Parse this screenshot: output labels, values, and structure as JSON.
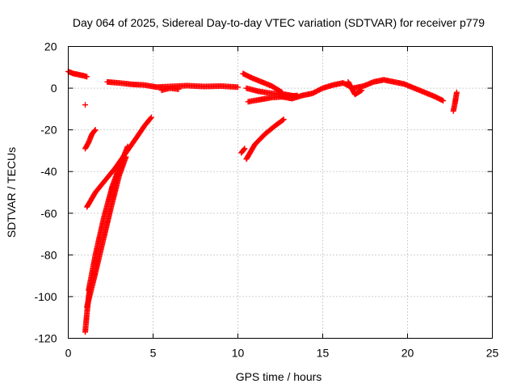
{
  "chart_data": {
    "type": "scatter",
    "title": "Day 064 of 2025, Sidereal Day-to-day VTEC variation (SDTVAR) for receiver p779",
    "xlabel": "GPS time / hours",
    "ylabel": "SDTVAR / TECUs",
    "xlim": [
      0,
      25
    ],
    "ylim": [
      -120,
      20
    ],
    "xticks": [
      0,
      5,
      10,
      15,
      20,
      25
    ],
    "yticks": [
      -120,
      -100,
      -80,
      -60,
      -40,
      -20,
      0,
      20
    ],
    "grid": true,
    "marker": "+",
    "color": "#ff0000",
    "series": [
      {
        "name": "SDTVAR",
        "segments": [
          {
            "x": [
              0.0,
              0.3,
              0.6,
              0.9,
              1.1
            ],
            "y": [
              8,
              7,
              6.5,
              6,
              5.5
            ]
          },
          {
            "x": [
              1.0
            ],
            "y": [
              -8
            ]
          },
          {
            "x": [
              1.0,
              1.2,
              1.4,
              1.6
            ],
            "y": [
              -29,
              -26,
              -22,
              -20
            ]
          },
          {
            "x": [
              1.1,
              1.6,
              2.2,
              2.8,
              3.4,
              4.0,
              4.5,
              4.9
            ],
            "y": [
              -57,
              -50,
              -44,
              -38,
              -31,
              -24,
              -18,
              -14
            ]
          },
          {
            "x": [
              1.0,
              1.1,
              1.2,
              1.3
            ],
            "y": [
              -117,
              -108,
              -100,
              -95
            ]
          },
          {
            "x": [
              1.1,
              1.5,
              2.0,
              2.5,
              3.0,
              3.4
            ],
            "y": [
              -105,
              -92,
              -75,
              -58,
              -42,
              -33
            ]
          },
          {
            "x": [
              1.2,
              1.6,
              2.1,
              2.6,
              3.0,
              3.5
            ],
            "y": [
              -97,
              -80,
              -62,
              -47,
              -38,
              -28
            ]
          },
          {
            "x": [
              2.3,
              3.0,
              3.8,
              4.5,
              5.2,
              6.0,
              7.0,
              8.0,
              9.0,
              10.0
            ],
            "y": [
              3,
              2.5,
              1.8,
              1.5,
              0.5,
              0.8,
              1.2,
              0.8,
              1.0,
              0.5
            ]
          },
          {
            "x": [
              5.5,
              6.0,
              6.5
            ],
            "y": [
              -1,
              0,
              -0.5
            ]
          },
          {
            "x": [
              10.3,
              10.8,
              11.4,
              12.0,
              12.6
            ],
            "y": [
              7,
              5,
              3,
              1,
              -2
            ]
          },
          {
            "x": [
              10.5,
              11.2,
              12.0,
              12.8,
              13.5
            ],
            "y": [
              0,
              -1.5,
              -2.5,
              -3,
              -4
            ]
          },
          {
            "x": [
              10.6,
              11.3,
              12.0,
              12.8,
              13.5
            ],
            "y": [
              -6.5,
              -5.5,
              -4.5,
              -4,
              -3.5
            ]
          },
          {
            "x": [
              10.2,
              10.4
            ],
            "y": [
              -31,
              -29
            ]
          },
          {
            "x": [
              10.5,
              11.0,
              11.6,
              12.2,
              12.7
            ],
            "y": [
              -34,
              -27,
              -22,
              -18,
              -15
            ]
          },
          {
            "x": [
              12.5,
              13.2,
              13.8,
              14.4,
              15.0,
              15.6,
              16.2,
              16.8,
              17.4,
              18.0,
              18.6,
              19.2,
              19.8,
              20.4,
              21.0,
              21.6,
              22.1
            ],
            "y": [
              -4,
              -5,
              -3.5,
              -2.5,
              0,
              1.5,
              2.5,
              0,
              1,
              3,
              4,
              3,
              2,
              0,
              -2,
              -4,
              -6
            ]
          },
          {
            "x": [
              16.5,
              16.9,
              17.3
            ],
            "y": [
              3,
              -3,
              -1
            ]
          },
          {
            "x": [
              22.7,
              22.8,
              22.9
            ],
            "y": [
              -11,
              -7,
              -2
            ]
          }
        ]
      }
    ]
  }
}
